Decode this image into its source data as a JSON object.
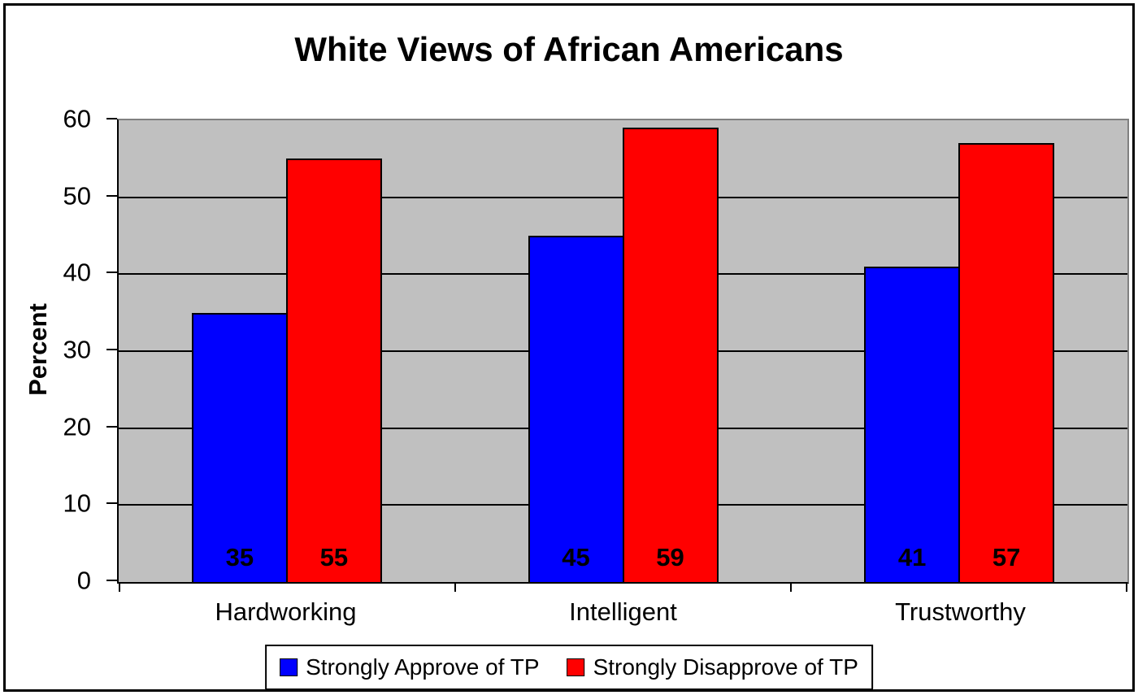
{
  "chart_data": {
    "type": "bar",
    "title": "White Views of African Americans",
    "xlabel": "",
    "ylabel": "Percent",
    "categories": [
      "Hardworking",
      "Intelligent",
      "Trustworthy"
    ],
    "series": [
      {
        "name": "Strongly Approve of TP",
        "color": "#0000ff",
        "values": [
          35,
          45,
          41
        ]
      },
      {
        "name": "Strongly Disapprove of TP",
        "color": "#ff0000",
        "values": [
          55,
          59,
          57
        ]
      }
    ],
    "yticks": [
      0,
      10,
      20,
      30,
      40,
      50,
      60
    ],
    "ylim": [
      0,
      60
    ],
    "ytick_step": 10,
    "grid": true,
    "gridline_color": "#000000",
    "plot_background": "#c0c0c0",
    "legend_position": "bottom",
    "value_labels_shown": true
  }
}
